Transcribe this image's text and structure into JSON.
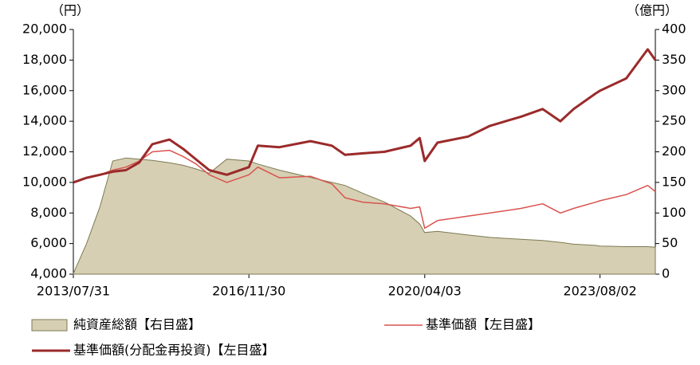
{
  "chart_data": {
    "type": "combo",
    "y_label": "（円）",
    "y2_label": "（億円）",
    "x": [
      "2013/07/31",
      "2013/10/31",
      "2014/01/31",
      "2014/04/30",
      "2014/07/31",
      "2014/10/31",
      "2015/01/30",
      "2015/05/29",
      "2015/08/31",
      "2015/11/30",
      "2016/02/29",
      "2016/06/30",
      "2016/11/30",
      "2017/01/31",
      "2017/06/30",
      "2018/01/31",
      "2018/06/29",
      "2018/09/28",
      "2019/01/31",
      "2019/06/28",
      "2019/12/27",
      "2020/02/28",
      "2020/04/03",
      "2020/06/30",
      "2021/01/29",
      "2021/06/30",
      "2022/01/31",
      "2022/06/30",
      "2022/10/31",
      "2023/01/31",
      "2023/06/30",
      "2023/08/02",
      "2024/01/31",
      "2024/06/28",
      "2024/08/20"
    ],
    "xlim": [
      "2013/07/31",
      "2024/08/20"
    ],
    "xticks": [
      "2013/07/31",
      "2016/11/30",
      "2020/04/03",
      "2023/08/02"
    ],
    "ylim": [
      4000,
      20000
    ],
    "yticks": [
      {
        "value": 4000,
        "label": "4,000"
      },
      {
        "value": 6000,
        "label": "6,000"
      },
      {
        "value": 8000,
        "label": "8,000"
      },
      {
        "value": 10000,
        "label": "10,000"
      },
      {
        "value": 12000,
        "label": "12,000"
      },
      {
        "value": 14000,
        "label": "14,000"
      },
      {
        "value": 16000,
        "label": "16,000"
      },
      {
        "value": 18000,
        "label": "18,000"
      },
      {
        "value": 20000,
        "label": "20,000"
      }
    ],
    "y2lim": [
      0,
      400
    ],
    "y2ticks": [
      0,
      50,
      100,
      150,
      200,
      250,
      300,
      350,
      400
    ],
    "series": [
      {
        "name": "純資産総額【右目盛】",
        "type": "area",
        "axis": "y2",
        "color": "#d6cfb3",
        "values": [
          1,
          50,
          110,
          185,
          190,
          188,
          186,
          182,
          178,
          172,
          165,
          188,
          185,
          180,
          170,
          158,
          150,
          145,
          132,
          118,
          95,
          82,
          68,
          70,
          64,
          60,
          57,
          55,
          52,
          49,
          47,
          46,
          45,
          45,
          44
        ]
      },
      {
        "name": "基準価額【左目盛】",
        "type": "line",
        "color": "#d9534f",
        "values": [
          10000,
          10300,
          10500,
          10800,
          11000,
          11400,
          12000,
          12100,
          11700,
          11200,
          10500,
          10000,
          10500,
          11000,
          10300,
          10400,
          9900,
          9000,
          8700,
          8600,
          8300,
          8400,
          7000,
          7500,
          7800,
          8000,
          8300,
          8600,
          8000,
          8300,
          8700,
          8800,
          9200,
          9800,
          9400
        ]
      },
      {
        "name": "基準価額(分配金再投資)【左目盛】",
        "type": "line",
        "color": "#9b2a2a",
        "values": [
          10000,
          10300,
          10500,
          10700,
          10800,
          11300,
          12500,
          12800,
          12200,
          11500,
          10800,
          10500,
          11000,
          12400,
          12300,
          12700,
          12400,
          11800,
          11900,
          12000,
          12400,
          12900,
          11400,
          12600,
          13000,
          13700,
          14300,
          14800,
          14000,
          14800,
          15800,
          16000,
          16800,
          18700,
          18000
        ]
      }
    ]
  }
}
